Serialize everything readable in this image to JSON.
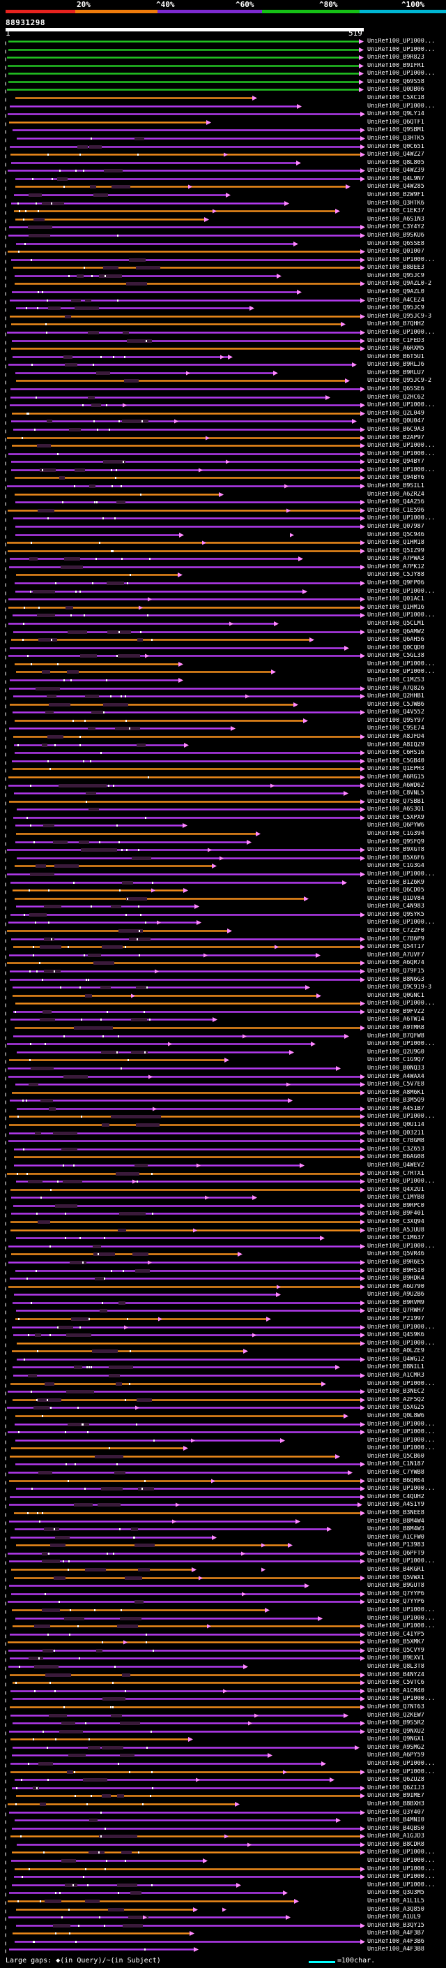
{
  "legend": {
    "labels": [
      "20%",
      "^40%",
      "^60%",
      "^80%",
      "^100%"
    ],
    "colors": [
      "#e8231f",
      "#f07c0c",
      "#7e2bd1",
      "#16c116",
      "#00b7d4"
    ]
  },
  "query": {
    "id": "88931298",
    "scale_start": "1",
    "scale_end": "519"
  },
  "hit_labels": [
    "UniRef100_UP1000...",
    "UniRef100_UP1000...",
    "UniRef100_B9R823",
    "UniRef100_B9IFR1",
    "UniRef100_UP1000...",
    "UniRef100_Q69S58",
    "UniRef100_Q0DB06",
    "UniRef100_C5XC18",
    "UniRef100_UP1000...",
    "UniRef100_Q9LY14",
    "UniRef100_Q6QTF1",
    "UniRef100_Q9SBM1",
    "UniRef100_Q3HTK5",
    "UniRef100_Q0C651",
    "UniRef100_Q4WZ27",
    "UniRef100_Q8L805",
    "UniRef100_Q4WZ39",
    "UniRef100_Q4L9N7",
    "UniRef100_Q4W285",
    "UniRef100_B2W9F1",
    "UniRef100_Q3HTK6",
    "UniRef100_C1EK37",
    "UniRef100_A6S1N3",
    "UniRef100_C3Y4Y2",
    "UniRef100_B9SKU6",
    "UniRef100_Q6SSE8",
    "UniRef100_Q01007",
    "UniRef100_UP1000...",
    "UniRef100_B8BEE3",
    "UniRef100_Q95JC9",
    "UniRef100_Q9AZL0-2",
    "UniRef100_Q9AZL0",
    "UniRef100_A4CEZ4",
    "UniRef100_Q95JC9",
    "UniRef100_Q95JC9-3",
    "UniRef100_B7QHH2",
    "UniRef100_UP1000...",
    "UniRef100_C1FED3",
    "UniRef100_A6RXM5",
    "UniRef100_B6T5U1",
    "UniRef100_B9RLJ6",
    "UniRef100_B9RLU7",
    "UniRef100_Q95JC9-2",
    "UniRef100_Q6SSE6",
    "UniRef100_Q2HC62",
    "UniRef100_UP1000...",
    "UniRef100_Q2L049",
    "UniRef100_Q0U047",
    "UniRef100_B6C9A3",
    "UniRef100_B2AP97",
    "UniRef100_UP1000...",
    "UniRef100_UP1000...",
    "UniRef100_Q94BY7",
    "UniRef100_UP1000...",
    "UniRef100_Q94BY6",
    "UniRef100_B9SIL1",
    "UniRef100_A6ZRZ4",
    "UniRef100_Q4A256",
    "UniRef100_C1E596",
    "UniRef100_UP1000...",
    "UniRef100_Q07987",
    "UniRef100_Q5C946",
    "UniRef100_Q1HM18",
    "UniRef100_Q5IZ99",
    "UniRef100_A7PWA3",
    "UniRef100_A7PK12",
    "UniRef100_C5JY88",
    "UniRef100_Q9FP06",
    "UniRef100_UP1000...",
    "UniRef100_Q01AC1",
    "UniRef100_Q1HM16",
    "UniRef100_UP1000...",
    "UniRef100_Q5CLM1",
    "UniRef100_Q6AMW2",
    "UniRef100_Q6AH56",
    "UniRef100_Q0CQD0",
    "UniRef100_C5GL38",
    "UniRef100_UP1000...",
    "UniRef100_UP1000...",
    "UniRef100_C1MZS3",
    "UniRef100_A7Q826",
    "UniRef100_Q2HHB1",
    "UniRef100_C5JWB6",
    "UniRef100_Q4V552",
    "UniRef100_Q9SY97",
    "UniRef100_C9SE74",
    "UniRef100_A8JFD4",
    "UniRef100_A8IQZ9",
    "UniRef100_C6HS16",
    "UniRef100_C5GB40",
    "UniRef100_Q1EPH3",
    "UniRef100_A6RG15",
    "UniRef100_A6WD62",
    "UniRef100_C8VNL5",
    "UniRef100_Q7SBB1",
    "UniRef100_A6S3Q1",
    "UniRef100_C5XPX9",
    "UniRef100_Q6PYW6",
    "UniRef100_C1G394",
    "UniRef100_Q9SFQ9",
    "UniRef100_B9XGT8",
    "UniRef100_B5X6F6",
    "UniRef100_C1G3G4",
    "UniRef100_UP1000...",
    "UniRef100_B1Z6K9",
    "UniRef100_Q6CD05",
    "UniRef100_Q1DV84",
    "UniRef100_C4N983",
    "UniRef100_Q9SYK5",
    "UniRef100_UP1000...",
    "UniRef100_C7Z2F0",
    "UniRef100_C7B6P9",
    "UniRef100_Q54T17",
    "UniRef100_A7UVF7",
    "UniRef100_A6QR74",
    "UniRef100_Q79F15",
    "UniRef100_B8N6G3",
    "UniRef100_Q9C919-3",
    "UniRef100_Q0GNC1",
    "UniRef100_UP1000...",
    "UniRef100_B9FVZ2",
    "UniRef100_A6TW14",
    "UniRef100_A9TMR8",
    "UniRef100_B7QFW8",
    "UniRef100_UP1000...",
    "UniRef100_Q2U9G0",
    "UniRef100_C1G9Q7",
    "UniRef100_B0NQ33",
    "UniRef100_A4WAX4",
    "UniRef100_C5V7E8",
    "UniRef100_A8M6K1",
    "UniRef100_B3M5Q9",
    "UniRef100_A4S1B7",
    "UniRef100_UP1000...",
    "UniRef100_Q0U114",
    "UniRef100_Q03211",
    "UniRef100_C7BGM8",
    "UniRef100_C3Z653",
    "UniRef100_B6AG08",
    "UniRef100_Q4WEV2",
    "UniRef100_C7RTX1",
    "UniRef100_UP1000...",
    "UniRef100_Q4X2U1",
    "UniRef100_C1MYB8",
    "UniRef100_B9RPC0",
    "UniRef100_B9F401",
    "UniRef100_C3XQ94",
    "UniRef100_A5JUU8",
    "UniRef100_C1M637",
    "UniRef100_UP1000...",
    "UniRef100_Q5VR46",
    "UniRef100_B9R6E5",
    "UniRef100_B9HSI0",
    "UniRef100_B9HDK4",
    "UniRef100_A6U790",
    "UniRef100_A9U2B6",
    "UniRef100_B9RVM9",
    "UniRef100_Q7RWH7",
    "UniRef100_P21997",
    "UniRef100_UP1000...",
    "UniRef100_Q4S9K6",
    "UniRef100_UP1000...",
    "UniRef100_A0LZE9",
    "UniRef100_Q4WG12",
    "UniRef100_B8NIL1",
    "UniRef100_A1CMR3",
    "UniRef100_UP1000...",
    "UniRef100_B3NEC2",
    "UniRef100_A2F5Q2",
    "UniRef100_Q5XG25",
    "UniRef100_Q0L8W6",
    "UniRef100_UP1000...",
    "UniRef100_UP1000...",
    "UniRef100_UP1000...",
    "UniRef100_UP1000...",
    "UniRef100_Q5CB60",
    "UniRef100_C1N187",
    "UniRef100_C7YWB8",
    "UniRef100_B6QR64",
    "UniRef100_UP1000...",
    "UniRef100_C4QUH2",
    "UniRef100_A4S1Y9",
    "UniRef100_B3NEE8",
    "UniRef100_B8M4W4",
    "UniRef100_B8M4W3",
    "UniRef100_A1CFW0",
    "UniRef100_P13983",
    "UniRef100_Q6PFT9",
    "UniRef100_UP1000...",
    "UniRef100_B4KGR1",
    "UniRef100_Q5VWX1",
    "UniRef100_B9GUT8",
    "UniRef100_Q7YYP6",
    "UniRef100_Q7YYP6",
    "UniRef100_UP1000...",
    "UniRef100_UP1000...",
    "UniRef100_UP1000...",
    "UniRef100_C4IYP5",
    "UniRef100_B5XMK7",
    "UniRef100_Q5CVY9",
    "UniRef100_B9EXV1",
    "UniRef100_Q8L3T8",
    "UniRef100_B4NYZ4",
    "UniRef100_C5VTC6",
    "UniRef100_A1CM40",
    "UniRef100_UP1000...",
    "UniRef100_Q7NT63",
    "UniRef100_Q2KEW7",
    "UniRef100_B9S5R2",
    "UniRef100_Q9NXU2",
    "UniRef100_Q9NGX1",
    "UniRef100_A9SMG2",
    "UniRef100_A6PY59",
    "UniRef100_UP1000...",
    "UniRef100_UP1000...",
    "UniRef100_Q6ZUZ8",
    "UniRef100_Q6ZIJ3",
    "UniRef100_B9IME7",
    "UniRef100_B8BXH3",
    "UniRef100_Q3Y407",
    "UniRef100_B4MNI0",
    "UniRef100_B4QBS0",
    "UniRef100_A1GJD3",
    "UniRef100_B8CDR8",
    "UniRef100_UP1000...",
    "UniRef100_UP1000...",
    "UniRef100_UP1000...",
    "UniRef100_UP1000...",
    "UniRef100_UP1000...",
    "UniRef100_Q3U3M5",
    "UniRef100_A1L1L5",
    "UniRef100_A3Q850",
    "UniRef100_A1UL9",
    "UniRef100_B3QY15",
    "UniRef100_A4F3B7",
    "UniRef100_A4F3B6",
    "UniRef100_A4F3B8"
  ],
  "hit_colors": {
    "green": "#22c422",
    "purple": "#b23aee",
    "orange": "#ee8a1a",
    "pink": "#ff88ff",
    "white": "#ffffff",
    "dark": "#3a1a3a"
  },
  "footer": {
    "gap_legend": "Large gaps: ◆(in Query)/~(in Subject)",
    "scale_legend": "=100char."
  }
}
